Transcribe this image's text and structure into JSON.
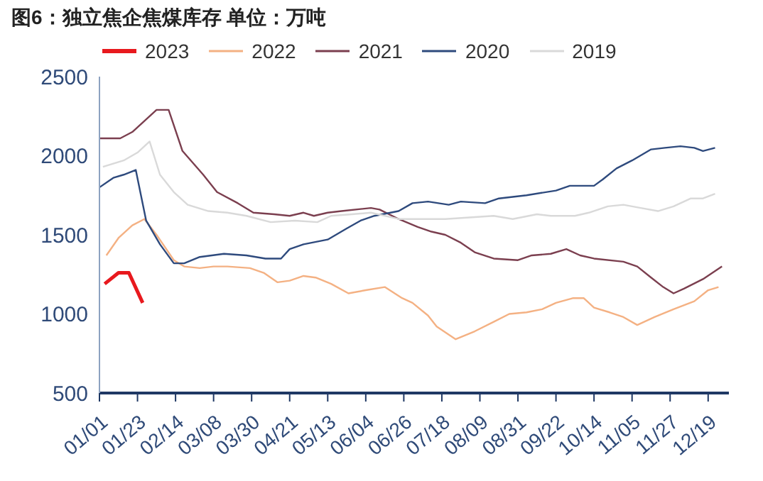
{
  "chart_data": {
    "type": "line",
    "title": "图6：独立焦企焦煤库存 单位：万吨",
    "legend": "top left",
    "grid": false,
    "marker": "none",
    "line_style": "solid",
    "xlim": [
      "--01-01",
      "--12-31"
    ],
    "ylim": [
      500,
      2500
    ],
    "yticks": [
      500,
      1000,
      1500,
      2000,
      2500
    ],
    "xticks": [
      {
        "value": "--01-01",
        "label": "01/01"
      },
      {
        "value": "--01-23",
        "label": "01/23"
      },
      {
        "value": "--02-14",
        "label": "02/14"
      },
      {
        "value": "--03-08",
        "label": "03/08"
      },
      {
        "value": "--03-30",
        "label": "03/30"
      },
      {
        "value": "--04-21",
        "label": "04/21"
      },
      {
        "value": "--05-13",
        "label": "05/13"
      },
      {
        "value": "--06-04",
        "label": "06/04"
      },
      {
        "value": "--06-26",
        "label": "06/26"
      },
      {
        "value": "--07-18",
        "label": "07/18"
      },
      {
        "value": "--08-09",
        "label": "08/09"
      },
      {
        "value": "--08-31",
        "label": "08/31"
      },
      {
        "value": "--09-22",
        "label": "09/22"
      },
      {
        "value": "--10-14",
        "label": "10/14"
      },
      {
        "value": "--11-05",
        "label": "11/05"
      },
      {
        "value": "--11-27",
        "label": "11/27"
      },
      {
        "value": "--12-19",
        "label": "12/19"
      }
    ],
    "series": [
      {
        "name": "2023",
        "color": "#e8191e",
        "x": [
          "--01-04",
          "--01-12",
          "--01-18",
          "--01-26"
        ],
        "values": [
          1190,
          1260,
          1260,
          1070
        ]
      },
      {
        "name": "2022",
        "color": "#f4b183",
        "x": [
          "--01-05",
          "--01-12",
          "--01-20",
          "--01-27",
          "--02-03",
          "--02-13",
          "--02-19",
          "--02-28",
          "--03-08",
          "--03-16",
          "--03-29",
          "--04-06",
          "--04-14",
          "--04-21",
          "--04-29",
          "--05-06",
          "--05-15",
          "--05-25",
          "--06-04",
          "--06-15",
          "--06-25",
          "--07-01",
          "--07-10",
          "--07-15",
          "--07-26",
          "--08-06",
          "--08-17",
          "--08-26",
          "--09-05",
          "--09-14",
          "--09-22",
          "--10-02",
          "--10-08",
          "--10-14",
          "--10-23",
          "--10-31",
          "--11-08",
          "--11-18",
          "--11-29",
          "--12-11",
          "--12-19",
          "--12-25"
        ],
        "values": [
          1370,
          1480,
          1560,
          1600,
          1500,
          1340,
          1300,
          1290,
          1300,
          1300,
          1290,
          1260,
          1200,
          1210,
          1240,
          1230,
          1190,
          1130,
          1150,
          1170,
          1100,
          1070,
          990,
          920,
          840,
          890,
          950,
          1000,
          1010,
          1030,
          1070,
          1100,
          1100,
          1040,
          1010,
          980,
          930,
          980,
          1030,
          1080,
          1150,
          1170
        ]
      },
      {
        "name": "2021",
        "color": "#7b3f4f",
        "x": [
          "--01-01",
          "--01-13",
          "--01-20",
          "--02-03",
          "--02-10",
          "--02-18",
          "--03-02",
          "--03-10",
          "--03-22",
          "--03-31",
          "--04-12",
          "--04-21",
          "--04-29",
          "--05-05",
          "--05-13",
          "--05-21",
          "--06-07",
          "--06-12",
          "--06-23",
          "--07-04",
          "--07-12",
          "--07-20",
          "--07-29",
          "--08-06",
          "--08-17",
          "--08-31",
          "--09-08",
          "--09-19",
          "--09-28",
          "--10-06",
          "--10-14",
          "--10-31",
          "--11-08",
          "--11-16",
          "--11-23",
          "--11-29",
          "--12-05",
          "--12-16",
          "--12-27"
        ],
        "values": [
          2110,
          2110,
          2150,
          2290,
          2290,
          2030,
          1880,
          1770,
          1700,
          1640,
          1630,
          1620,
          1640,
          1620,
          1640,
          1650,
          1670,
          1660,
          1600,
          1550,
          1520,
          1500,
          1450,
          1390,
          1350,
          1340,
          1370,
          1380,
          1410,
          1370,
          1350,
          1330,
          1300,
          1230,
          1170,
          1130,
          1160,
          1220,
          1300
        ]
      },
      {
        "name": "2020",
        "color": "#2e4a7d",
        "x": [
          "--01-01",
          "--01-09",
          "--01-15",
          "--01-22",
          "--01-28",
          "--02-05",
          "--02-13",
          "--02-19",
          "--02-28",
          "--03-14",
          "--03-27",
          "--04-07",
          "--04-16",
          "--04-21",
          "--04-29",
          "--05-13",
          "--05-24",
          "--06-01",
          "--06-09",
          "--06-23",
          "--07-01",
          "--07-10",
          "--07-22",
          "--07-29",
          "--08-12",
          "--08-20",
          "--09-05",
          "--09-22",
          "--09-30",
          "--10-14",
          "--10-19",
          "--10-27",
          "--11-05",
          "--11-16",
          "--11-24",
          "--12-03",
          "--12-11",
          "--12-16",
          "--12-23"
        ],
        "values": [
          1800,
          1860,
          1880,
          1910,
          1590,
          1440,
          1320,
          1320,
          1360,
          1380,
          1370,
          1350,
          1350,
          1410,
          1440,
          1470,
          1540,
          1590,
          1620,
          1650,
          1700,
          1710,
          1690,
          1710,
          1700,
          1730,
          1750,
          1780,
          1810,
          1810,
          1850,
          1920,
          1970,
          2040,
          2050,
          2060,
          2050,
          2030,
          2050
        ]
      },
      {
        "name": "2019",
        "color": "#d9d9d9",
        "x": [
          "--01-03",
          "--01-15",
          "--01-23",
          "--01-30",
          "--02-05",
          "--02-13",
          "--02-21",
          "--03-05",
          "--03-16",
          "--03-27",
          "--04-10",
          "--04-24",
          "--05-07",
          "--05-15",
          "--05-27",
          "--06-07",
          "--06-23",
          "--07-10",
          "--07-20",
          "--08-03",
          "--08-17",
          "--08-28",
          "--09-11",
          "--09-19",
          "--10-03",
          "--10-11",
          "--10-22",
          "--10-31",
          "--11-10",
          "--11-20",
          "--11-29",
          "--12-09",
          "--12-16",
          "--12-23"
        ],
        "values": [
          1930,
          1970,
          2020,
          2090,
          1880,
          1770,
          1690,
          1650,
          1640,
          1620,
          1580,
          1590,
          1580,
          1620,
          1630,
          1640,
          1600,
          1600,
          1600,
          1610,
          1620,
          1600,
          1630,
          1620,
          1620,
          1640,
          1680,
          1690,
          1670,
          1650,
          1680,
          1730,
          1730,
          1760
        ]
      }
    ]
  }
}
